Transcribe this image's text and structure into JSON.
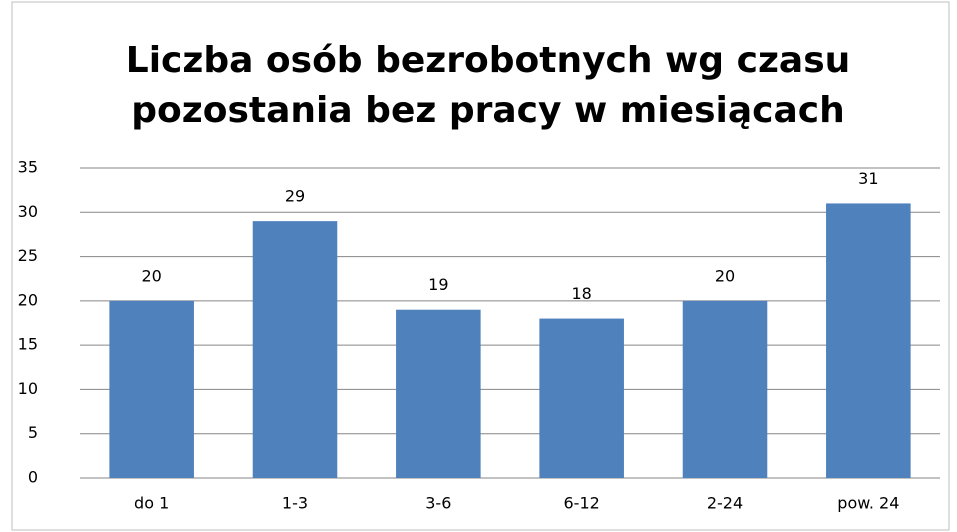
{
  "chart_data": {
    "type": "bar",
    "title": [
      "Liczba osób bezrobotnych wg czasu",
      "pozostania bez pracy w miesiącach"
    ],
    "categories": [
      "do 1",
      "1-3",
      "3-6",
      "6-12",
      "2-24",
      "pow. 24"
    ],
    "values": [
      20,
      29,
      19,
      18,
      20,
      31
    ],
    "color": "#4f81bd",
    "ylim": [
      0,
      35
    ],
    "yticks": [
      0,
      5,
      10,
      15,
      20,
      25,
      30,
      35
    ],
    "grid": true
  }
}
